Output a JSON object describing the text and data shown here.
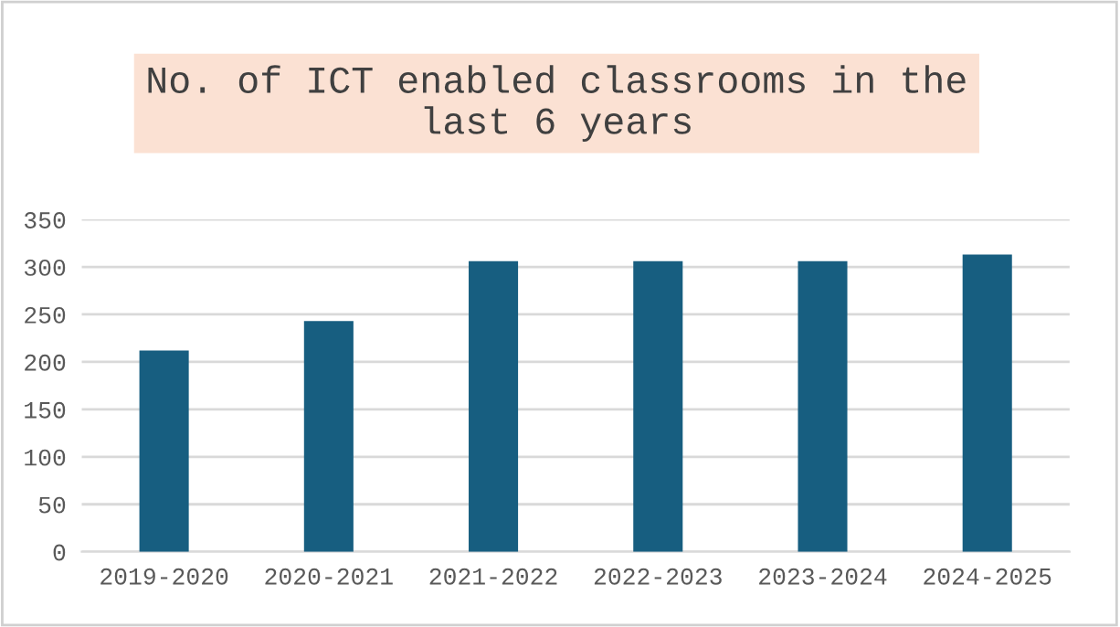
{
  "chart_data": {
    "type": "bar",
    "title": "No. of ICT enabled classrooms in the last 6 years",
    "categories": [
      "2019-2020",
      "2020-2021",
      "2021-2022",
      "2022-2023",
      "2023-2024",
      "2024-2025"
    ],
    "values": [
      212,
      243,
      306,
      306,
      306,
      313
    ],
    "color": "#175e80",
    "ylim": [
      0,
      350
    ],
    "yticks": [
      0,
      50,
      100,
      150,
      200,
      250,
      300,
      350
    ],
    "grid": "y",
    "legend": false
  }
}
